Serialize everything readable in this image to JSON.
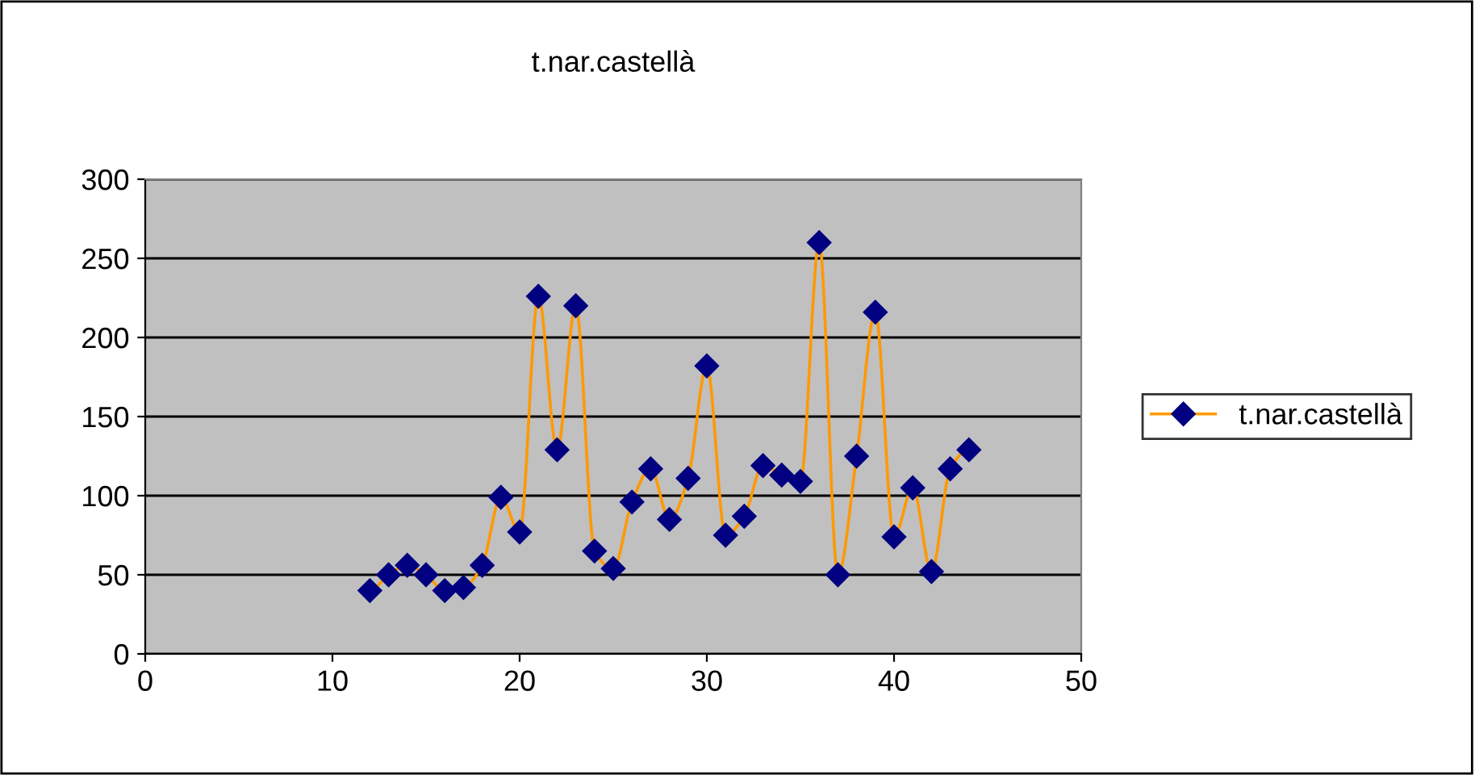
{
  "chart_data": {
    "type": "line",
    "title": "t.nar.castellà",
    "x": [
      12,
      13,
      14,
      15,
      16,
      17,
      18,
      19,
      20,
      21,
      22,
      23,
      24,
      25,
      26,
      27,
      28,
      29,
      30,
      31,
      32,
      33,
      34,
      35,
      36,
      37,
      38,
      39,
      40,
      41,
      42,
      43,
      44
    ],
    "series": [
      {
        "name": "t.nar.castellà",
        "color": "#ff9900",
        "values": [
          40,
          50,
          56,
          50,
          40,
          42,
          56,
          99,
          77,
          226,
          129,
          220,
          65,
          54,
          96,
          117,
          85,
          111,
          182,
          75,
          87,
          119,
          113,
          109,
          260,
          50,
          125,
          216,
          74,
          105,
          52,
          117,
          129
        ]
      }
    ],
    "xlim": [
      0,
      50
    ],
    "xticks": [
      0,
      10,
      20,
      30,
      40,
      50
    ],
    "ylim": [
      0,
      300
    ],
    "yticks": [
      0,
      50,
      100,
      150,
      200,
      250,
      300
    ],
    "grid": "y",
    "legend": "right",
    "marker": "diamond",
    "line_style": "solid"
  }
}
